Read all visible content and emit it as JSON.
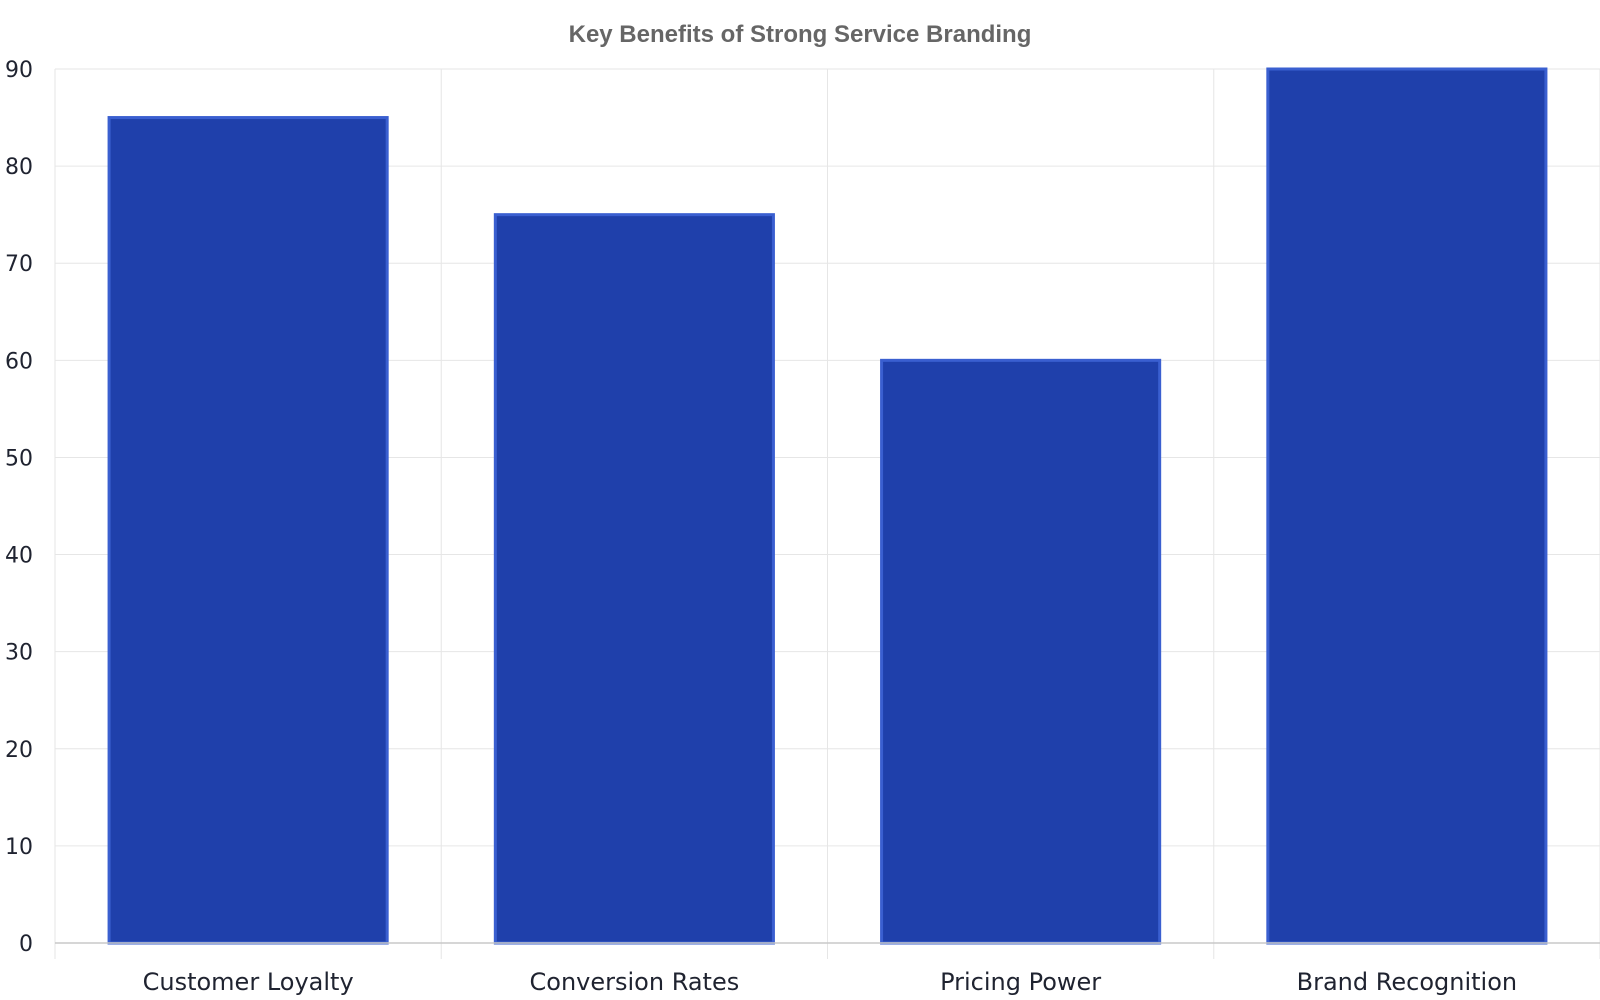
{
  "chart_data": {
    "type": "bar",
    "title": "Key Benefits of Strong Service Branding",
    "xlabel": "",
    "ylabel": "",
    "categories": [
      "Customer Loyalty",
      "Conversion Rates",
      "Pricing Power",
      "Brand Recognition"
    ],
    "values": [
      85,
      75,
      60,
      90
    ],
    "ylim": [
      0,
      90
    ],
    "yticks": [
      0,
      10,
      20,
      30,
      40,
      50,
      60,
      70,
      80,
      90
    ],
    "grid": true,
    "legend": "none",
    "colors": {
      "bar_fill": "#1f40ab",
      "bar_edge": "#3a5fd0",
      "grid": "#e6e6e6",
      "title": "#666666",
      "text": "#1f2330"
    }
  }
}
